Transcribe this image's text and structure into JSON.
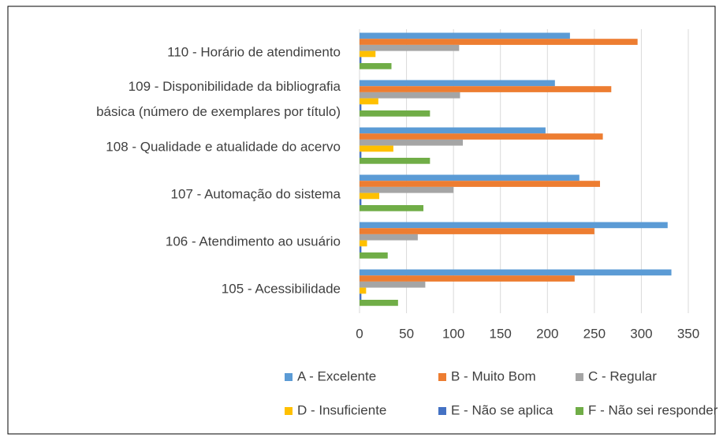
{
  "chart_data": {
    "type": "hbar",
    "categories": [
      "110 - Horário de atendimento",
      "109 - Disponibilidade da bibliografia\nbásica (número de exemplares por título)",
      "108 - Qualidade e atualidade do acervo",
      "107 - Automação do sistema",
      "106 - Atendimento ao usuário",
      "105 - Acessibilidade"
    ],
    "series": [
      {
        "name": "A - Excelente",
        "color": "#5b9bd5",
        "values": [
          224,
          208,
          198,
          234,
          328,
          332
        ]
      },
      {
        "name": "B - Muito Bom",
        "color": "#ed7d31",
        "values": [
          296,
          268,
          259,
          256,
          250,
          229
        ]
      },
      {
        "name": "C - Regular",
        "color": "#a5a5a5",
        "values": [
          106,
          107,
          110,
          100,
          62,
          70
        ]
      },
      {
        "name": "D - Insuficiente",
        "color": "#ffc000",
        "values": [
          17,
          20,
          36,
          21,
          8,
          7
        ]
      },
      {
        "name": "E - Não se aplica",
        "color": "#4472c4",
        "values": [
          2,
          2,
          2,
          2,
          2,
          2
        ]
      },
      {
        "name": "F - Não sei responder",
        "color": "#70ad47",
        "values": [
          34,
          75,
          75,
          68,
          30,
          41
        ]
      }
    ],
    "xlim": [
      0,
      350
    ],
    "xticks": [
      0,
      50,
      100,
      150,
      200,
      250,
      300,
      350
    ],
    "grid": true,
    "legend": "bottom"
  }
}
